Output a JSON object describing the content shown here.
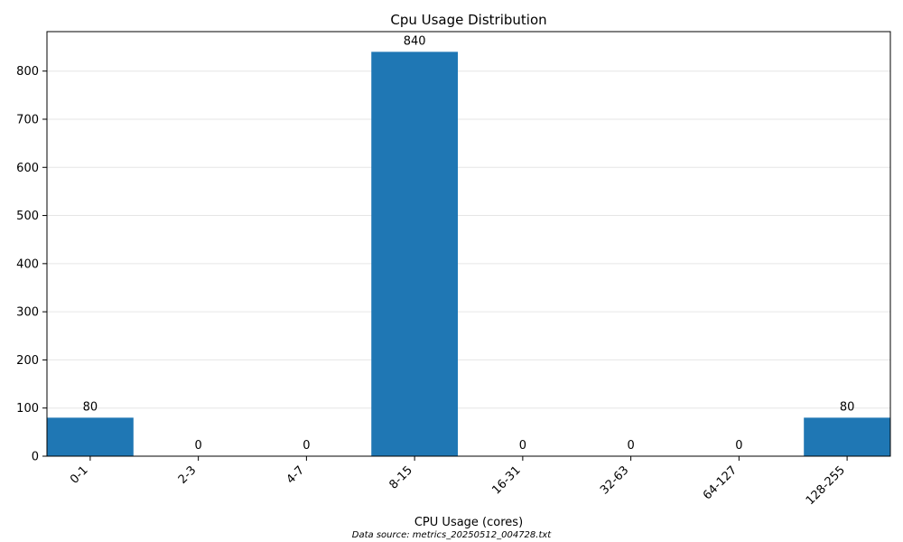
{
  "chart_data": {
    "type": "bar",
    "title": "Cpu Usage Distribution",
    "xlabel": "CPU Usage (cores)",
    "ylabel": "",
    "categories": [
      "0-1",
      "2-3",
      "4-7",
      "8-15",
      "16-31",
      "32-63",
      "64-127",
      "128-255"
    ],
    "values": [
      80,
      0,
      0,
      840,
      0,
      0,
      0,
      80
    ],
    "data_labels": [
      "80",
      "0",
      "0",
      "840",
      "0",
      "0",
      "0",
      "80"
    ],
    "ylim": [
      0,
      882
    ],
    "yticks": [
      0,
      100,
      200,
      300,
      400,
      500,
      600,
      700,
      800
    ],
    "grid": "y",
    "bar_color": "#1f77b4",
    "grid_color": "#e6e6e6",
    "footnote": "Data source: metrics_20250512_004728.txt"
  }
}
